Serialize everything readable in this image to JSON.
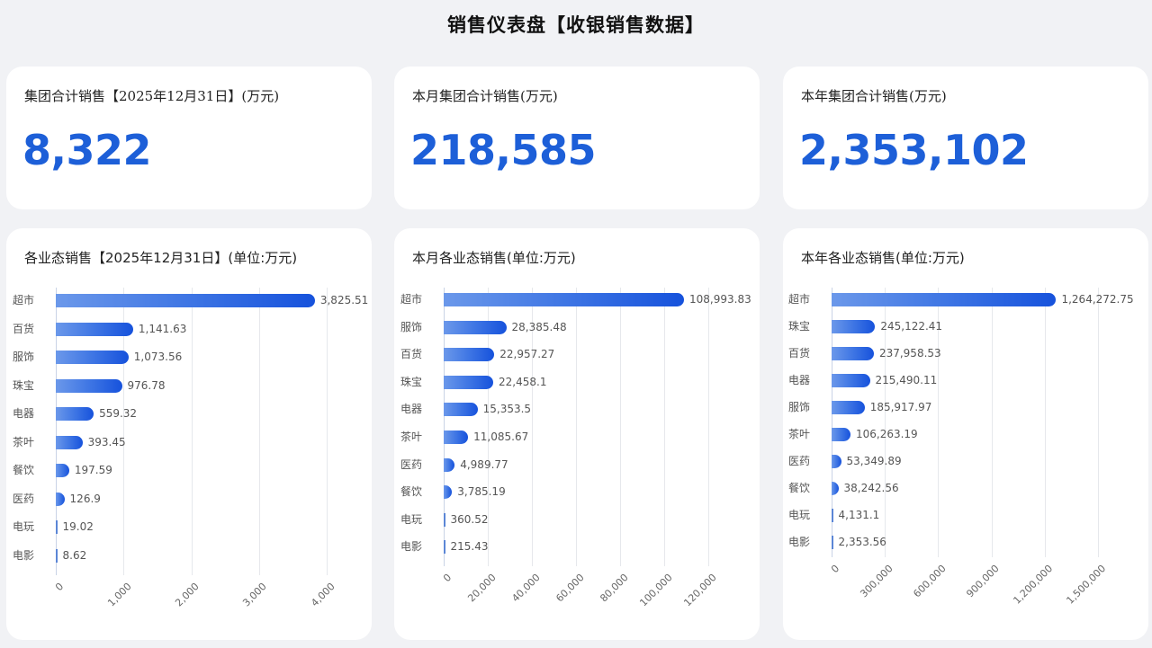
{
  "page": {
    "title": "销售仪表盘【收银销售数据】"
  },
  "kpis": [
    {
      "label": "集团合计销售【2025年12月31日】(万元)",
      "value": "8,322"
    },
    {
      "label": "本月集团合计销售(万元)",
      "value": "218,585"
    },
    {
      "label": "本年集团合计销售(万元)",
      "value": "2,353,102"
    }
  ],
  "colors": {
    "accent": "#1d5fd8",
    "bar_start": "#6b98ea",
    "bar_end": "#1652dc",
    "background": "#f1f2f5"
  },
  "chart_data": [
    {
      "type": "bar",
      "orientation": "horizontal",
      "title": "各业态销售【2025年12月31日】(单位:万元)",
      "categories": [
        "超市",
        "百货",
        "服饰",
        "珠宝",
        "电器",
        "茶叶",
        "餐饮",
        "医药",
        "电玩",
        "电影"
      ],
      "values": [
        3825.51,
        1141.63,
        1073.56,
        976.78,
        559.32,
        393.45,
        197.59,
        126.9,
        19.02,
        8.62
      ],
      "value_labels": [
        "3,825.51",
        "1,141.63",
        "1,073.56",
        "976.78",
        "559.32",
        "393.45",
        "197.59",
        "126.9",
        "19.02",
        "8.62"
      ],
      "xlim": [
        0,
        4000
      ],
      "xticks": [
        "0",
        "1,000",
        "2,000",
        "3,000",
        "4,000"
      ],
      "xlabel": "",
      "ylabel": "",
      "grid": true,
      "legend": "none"
    },
    {
      "type": "bar",
      "orientation": "horizontal",
      "title": "本月各业态销售(单位:万元)",
      "categories": [
        "超市",
        "服饰",
        "百货",
        "珠宝",
        "电器",
        "茶叶",
        "医药",
        "餐饮",
        "电玩",
        "电影"
      ],
      "values": [
        108993.83,
        28385.48,
        22957.27,
        22458.1,
        15353.5,
        11085.67,
        4989.77,
        3785.19,
        360.52,
        215.43
      ],
      "value_labels": [
        "108,993.83",
        "28,385.48",
        "22,957.27",
        "22,458.1",
        "15,353.5",
        "11,085.67",
        "4,989.77",
        "3,785.19",
        "360.52",
        "215.43"
      ],
      "xlim": [
        0,
        120000
      ],
      "xticks": [
        "0",
        "20,000",
        "40,000",
        "60,000",
        "80,000",
        "100,000",
        "120,000"
      ],
      "xlabel": "",
      "ylabel": "",
      "grid": true,
      "legend": "none"
    },
    {
      "type": "bar",
      "orientation": "horizontal",
      "title": "本年各业态销售(单位:万元)",
      "categories": [
        "超市",
        "珠宝",
        "百货",
        "电器",
        "服饰",
        "茶叶",
        "医药",
        "餐饮",
        "电玩",
        "电影"
      ],
      "values": [
        1264272.75,
        245122.41,
        237958.53,
        215490.11,
        185917.97,
        106263.19,
        53349.89,
        38242.56,
        4131.1,
        2353.56
      ],
      "value_labels": [
        "1,264,272.75",
        "245,122.41",
        "237,958.53",
        "215,490.11",
        "185,917.97",
        "106,263.19",
        "53,349.89",
        "38,242.56",
        "4,131.1",
        "2,353.56"
      ],
      "xlim": [
        0,
        1500000
      ],
      "xticks": [
        "0",
        "300,000",
        "600,000",
        "900,000",
        "1,200,000",
        "1,500,000"
      ],
      "xlabel": "",
      "ylabel": "",
      "grid": true,
      "legend": "none"
    }
  ]
}
